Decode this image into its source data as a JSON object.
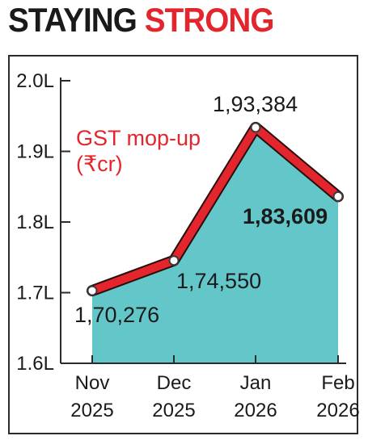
{
  "header": {
    "title_part1": "STAYING",
    "title_part2": "STRONG"
  },
  "chart_data": {
    "type": "area",
    "series_label": "GST mop-up",
    "unit_label": "(₹cr)",
    "categories": [
      [
        "Nov",
        "2025"
      ],
      [
        "Dec",
        "2025"
      ],
      [
        "Jan",
        "2026"
      ],
      [
        "Feb",
        "2026"
      ]
    ],
    "values": [
      170276,
      174550,
      193384,
      183609
    ],
    "value_labels": [
      "1,70,276",
      "1,74,550",
      "1,93,384",
      "1,83,609"
    ],
    "highlight_index": 3,
    "y_ticks": [
      {
        "value": 200000,
        "label": "2.0L"
      },
      {
        "value": 190000,
        "label": "1.9L"
      },
      {
        "value": 180000,
        "label": "1.8L"
      },
      {
        "value": 170000,
        "label": "1.7L"
      },
      {
        "value": 160000,
        "label": "1.6L"
      }
    ],
    "ylim": [
      160000,
      200000
    ],
    "colors": {
      "line": "#e3262d",
      "area": "#63c7c9",
      "text": "#1a1a1a",
      "accent": "#e3262d"
    }
  }
}
